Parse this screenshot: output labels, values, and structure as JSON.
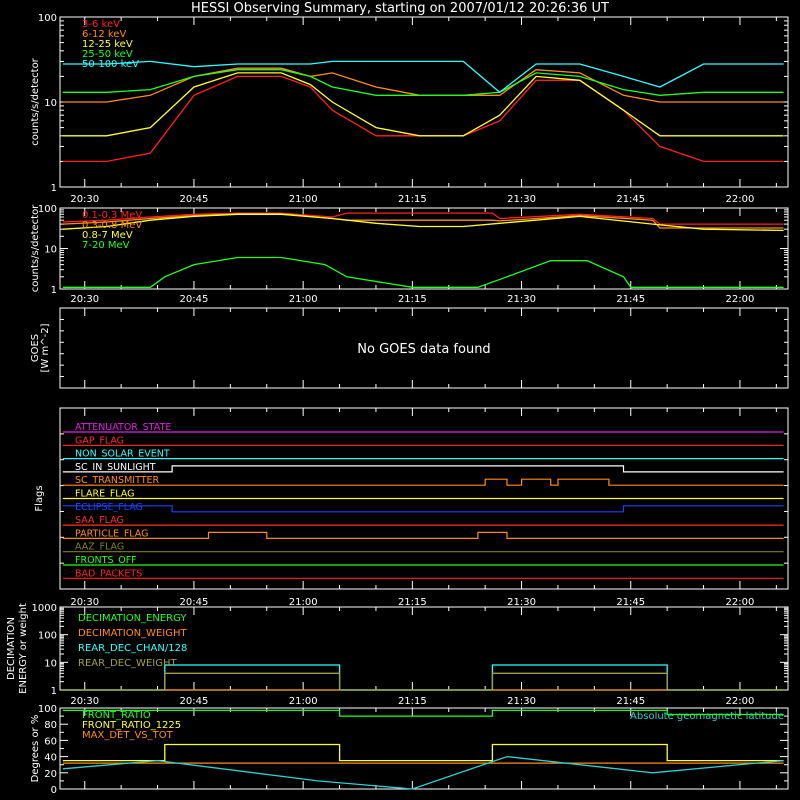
{
  "title": "HESSI Observing Summary, starting on 2007/01/12 20:26:36 UT",
  "chart_data": [
    {
      "type": "line",
      "panel": "low-energy-rates",
      "ylabel": "counts/s/detector",
      "yscale": "log",
      "ylim": [
        1,
        100
      ],
      "ytick_labels": [
        "1",
        "10",
        "100"
      ],
      "xlim": [
        "20:26:36",
        "22:06:36"
      ],
      "xtick_labels": [
        "20:30",
        "20:45",
        "21:00",
        "21:15",
        "21:30",
        "21:45",
        "22:00"
      ],
      "legend_placement": "top-left",
      "series": [
        {
          "name": "3-6 keV",
          "color": "#ff2020",
          "x": [
            "20:27",
            "20:33",
            "20:39",
            "20:45",
            "20:51",
            "20:57",
            "21:01",
            "21:04",
            "21:10",
            "21:16",
            "21:22",
            "21:27",
            "21:32",
            "21:38",
            "21:44",
            "21:49",
            "21:55",
            "22:01",
            "22:06"
          ],
          "values": [
            2,
            2,
            2.5,
            12,
            20,
            20,
            15,
            8,
            4,
            4,
            4,
            6,
            18,
            18,
            8,
            3,
            2,
            2,
            2
          ]
        },
        {
          "name": "6-12 keV",
          "color": "#ff8c1a",
          "x": [
            "20:27",
            "20:33",
            "20:39",
            "20:45",
            "20:51",
            "20:57",
            "21:01",
            "21:04",
            "21:10",
            "21:16",
            "21:22",
            "21:27",
            "21:32",
            "21:38",
            "21:44",
            "21:49",
            "21:55",
            "22:01",
            "22:06"
          ],
          "values": [
            10,
            10,
            12,
            20,
            25,
            25,
            20,
            22,
            15,
            12,
            12,
            12,
            24,
            22,
            12,
            10,
            10,
            10,
            10
          ]
        },
        {
          "name": "12-25 keV",
          "color": "#ffff30",
          "x": [
            "20:27",
            "20:33",
            "20:39",
            "20:45",
            "20:51",
            "20:57",
            "21:01",
            "21:04",
            "21:10",
            "21:16",
            "21:22",
            "21:27",
            "21:32",
            "21:38",
            "21:44",
            "21:49",
            "21:55",
            "22:01",
            "22:06"
          ],
          "values": [
            4,
            4,
            5,
            15,
            22,
            22,
            16,
            10,
            5,
            4,
            4,
            7,
            20,
            18,
            8,
            4,
            4,
            4,
            4
          ]
        },
        {
          "name": "25-50 keV",
          "color": "#20ff20",
          "x": [
            "20:27",
            "20:33",
            "20:39",
            "20:45",
            "20:51",
            "20:57",
            "21:01",
            "21:04",
            "21:10",
            "21:16",
            "21:22",
            "21:27",
            "21:32",
            "21:38",
            "21:44",
            "21:49",
            "21:55",
            "22:01",
            "22:06"
          ],
          "values": [
            13,
            13,
            14,
            20,
            24,
            24,
            20,
            15,
            12,
            12,
            12,
            13,
            22,
            20,
            14,
            12,
            13,
            13,
            13
          ]
        },
        {
          "name": "50-100 keV",
          "color": "#30ffff",
          "x": [
            "20:27",
            "20:33",
            "20:39",
            "20:45",
            "20:51",
            "20:57",
            "21:01",
            "21:04",
            "21:10",
            "21:16",
            "21:22",
            "21:27",
            "21:32",
            "21:38",
            "21:44",
            "21:49",
            "21:55",
            "22:01",
            "22:06"
          ],
          "values": [
            28,
            28,
            30,
            26,
            28,
            28,
            28,
            30,
            30,
            30,
            30,
            13,
            28,
            28,
            20,
            15,
            28,
            28,
            28
          ]
        }
      ]
    },
    {
      "type": "line",
      "panel": "high-energy-rates",
      "ylabel": "counts/s/detector",
      "yscale": "log",
      "ylim": [
        1,
        100
      ],
      "ytick_labels": [
        "1",
        "10",
        "100"
      ],
      "xlim": [
        "20:26:36",
        "22:06:36"
      ],
      "xtick_labels": [
        "20:30",
        "20:45",
        "21:00",
        "21:15",
        "21:30",
        "21:45",
        "22:00"
      ],
      "legend_placement": "top-left",
      "series": [
        {
          "name": "0.1-0.3 MeV",
          "color": "#ff2020",
          "x": [
            "20:27",
            "20:33",
            "20:39",
            "20:45",
            "20:51",
            "20:57",
            "21:04",
            "21:06",
            "21:15",
            "21:26",
            "21:27",
            "21:38",
            "21:48",
            "21:49",
            "21:55",
            "22:06"
          ],
          "values": [
            45,
            50,
            60,
            70,
            75,
            75,
            60,
            75,
            75,
            75,
            55,
            70,
            55,
            40,
            40,
            40
          ]
        },
        {
          "name": "0.3-0.8 MeV",
          "color": "#ff8c1a",
          "x": [
            "20:27",
            "20:33",
            "20:39",
            "20:45",
            "20:51",
            "20:57",
            "21:04",
            "21:06",
            "21:15",
            "21:26",
            "21:27",
            "21:38",
            "21:48",
            "21:49",
            "21:55",
            "22:06"
          ],
          "values": [
            40,
            45,
            55,
            65,
            72,
            72,
            55,
            50,
            50,
            50,
            48,
            65,
            50,
            32,
            32,
            32
          ]
        },
        {
          "name": "0.8-7 MeV",
          "color": "#ffff30",
          "x": [
            "20:27",
            "20:33",
            "20:39",
            "20:45",
            "20:51",
            "20:57",
            "21:04",
            "21:10",
            "21:16",
            "21:22",
            "21:27",
            "21:38",
            "21:48",
            "21:55",
            "22:06"
          ],
          "values": [
            30,
            35,
            50,
            62,
            70,
            70,
            55,
            42,
            35,
            35,
            42,
            62,
            40,
            30,
            28
          ]
        },
        {
          "name": "7-20 MeV",
          "color": "#20ff20",
          "x": [
            "20:27",
            "20:39",
            "20:41",
            "20:45",
            "20:51",
            "20:57",
            "21:03",
            "21:06",
            "21:15",
            "21:24",
            "21:28",
            "21:34",
            "21:39",
            "21:44",
            "21:45",
            "22:06"
          ],
          "values": [
            1.1,
            1.1,
            2,
            4,
            6,
            6,
            4,
            2,
            1.1,
            1.1,
            2,
            5,
            5,
            2,
            1.1,
            1.1
          ]
        }
      ]
    },
    {
      "type": "line",
      "panel": "goes",
      "ylabel": "GOES [W m^-2]",
      "annotations": [
        "No GOES data found"
      ],
      "xlim": [
        "20:26:36",
        "22:06:36"
      ],
      "series": []
    },
    {
      "type": "line",
      "panel": "flags",
      "ylabel": "Flags",
      "xlim": [
        "20:26:36",
        "22:06:36"
      ],
      "xtick_labels": [
        "20:30",
        "20:45",
        "21:00",
        "21:15",
        "21:30",
        "21:45",
        "22:00"
      ],
      "series": [
        {
          "name": "ATTENUATOR_STATE",
          "color": "#e020e0",
          "x": [
            "20:27",
            "22:06"
          ],
          "values": [
            0,
            0
          ]
        },
        {
          "name": "GAP_FLAG",
          "color": "#ff3030",
          "x": [
            "20:27",
            "22:06"
          ],
          "values": [
            0,
            0
          ]
        },
        {
          "name": "NON_SOLAR_EVENT",
          "color": "#30ffff",
          "x": [
            "20:27",
            "22:06"
          ],
          "values": [
            0,
            0
          ]
        },
        {
          "name": "SC_IN_SUNLIGHT",
          "color": "#ffffff",
          "x": [
            "20:27",
            "20:42",
            "20:42",
            "21:44",
            "21:44",
            "22:06"
          ],
          "values": [
            0,
            0,
            1,
            1,
            0,
            0
          ]
        },
        {
          "name": "SC_TRANSMITTER",
          "color": "#ff8c1a",
          "x": [
            "20:27",
            "21:25",
            "21:25",
            "21:28",
            "21:28",
            "21:30",
            "21:30",
            "21:34",
            "21:34",
            "21:35",
            "21:35",
            "21:42",
            "21:42",
            "22:06"
          ],
          "values": [
            0,
            0,
            1,
            1,
            0,
            0,
            1,
            1,
            0,
            0,
            1,
            1,
            0,
            0
          ]
        },
        {
          "name": "FLARE_FLAG",
          "color": "#ffff30",
          "x": [
            "20:27",
            "22:06"
          ],
          "values": [
            0,
            0
          ]
        },
        {
          "name": "ECLIPSE_FLAG",
          "color": "#2040ff",
          "x": [
            "20:27",
            "20:42",
            "20:42",
            "21:44",
            "21:44",
            "22:06"
          ],
          "values": [
            1,
            1,
            0,
            0,
            1,
            1
          ]
        },
        {
          "name": "SAA_FLAG",
          "color": "#ff3030",
          "x": [
            "20:27",
            "22:06"
          ],
          "values": [
            0,
            0
          ]
        },
        {
          "name": "PARTICLE_FLAG",
          "color": "#ff8c1a",
          "x": [
            "20:27",
            "20:47",
            "20:47",
            "20:55",
            "20:55",
            "21:24",
            "21:24",
            "21:28",
            "21:28",
            "22:06"
          ],
          "values": [
            0,
            0,
            1,
            1,
            0,
            0,
            1,
            1,
            0,
            0
          ]
        },
        {
          "name": "AAZ_FLAG",
          "color": "#808020",
          "x": [
            "20:27",
            "22:06"
          ],
          "values": [
            0,
            0
          ]
        },
        {
          "name": "FRONTS_OFF",
          "color": "#20ff20",
          "x": [
            "20:27",
            "22:06"
          ],
          "values": [
            0,
            0
          ]
        },
        {
          "name": "BAD_PACKETS",
          "color": "#ff2020",
          "x": [
            "20:27",
            "22:06"
          ],
          "values": [
            0,
            0
          ]
        }
      ]
    },
    {
      "type": "line",
      "panel": "decimation",
      "ylabel": "DECIMATION ENERGY or weight",
      "yscale": "log",
      "ylim": [
        1,
        1000
      ],
      "ytick_labels": [
        "1",
        "10",
        "100",
        "1000"
      ],
      "xlim": [
        "20:26:36",
        "22:06:36"
      ],
      "xtick_labels": [
        "20:30",
        "20:45",
        "21:00",
        "21:15",
        "21:30",
        "21:45",
        "22:00"
      ],
      "legend_placement": "top-left",
      "series": [
        {
          "name": "DECIMATION_ENERGY",
          "color": "#20ff20",
          "x": [
            "20:27",
            "22:06"
          ],
          "values": [
            1,
            1
          ]
        },
        {
          "name": "DECIMATION_WEIGHT",
          "color": "#ff8c1a",
          "x": [
            "20:27",
            "22:06"
          ],
          "values": [
            1,
            1
          ]
        },
        {
          "name": "REAR_DEC_CHAN/128",
          "color": "#30ffff",
          "x": [
            "20:27",
            "20:41",
            "20:41",
            "21:05",
            "21:05",
            "21:26",
            "21:26",
            "21:50",
            "21:50",
            "22:06"
          ],
          "values": [
            1,
            1,
            8,
            8,
            1,
            1,
            8,
            8,
            1,
            1
          ]
        },
        {
          "name": "REAR_DEC_WEIGHT",
          "color": "#a0a040",
          "x": [
            "20:27",
            "20:41",
            "20:41",
            "21:05",
            "21:05",
            "21:26",
            "21:26",
            "21:50",
            "21:50",
            "22:06"
          ],
          "values": [
            1,
            1,
            4,
            4,
            1,
            1,
            4,
            4,
            1,
            1
          ]
        }
      ]
    },
    {
      "type": "line",
      "panel": "ratios",
      "ylabel": "Degrees or %",
      "ylim": [
        0,
        100
      ],
      "ytick_labels": [
        "0",
        "20",
        "40",
        "60",
        "80",
        "100"
      ],
      "xlim": [
        "20:26:36",
        "22:06:36"
      ],
      "legend_placement": "top-left",
      "annotations": [
        "Absolute geomagnetic latitude"
      ],
      "series": [
        {
          "name": "FRONT_RATIO",
          "color": "#20ff20",
          "x": [
            "20:27",
            "20:41",
            "20:41",
            "21:05",
            "21:05",
            "21:26",
            "21:26",
            "21:50",
            "21:50",
            "22:06"
          ],
          "values": [
            97,
            97,
            97,
            97,
            90,
            90,
            97,
            97,
            92,
            92
          ]
        },
        {
          "name": "FRONT_RATIO_1225",
          "color": "#ffff30",
          "x": [
            "20:27",
            "20:41",
            "20:41",
            "21:05",
            "21:05",
            "21:26",
            "21:26",
            "21:50",
            "21:50",
            "22:06"
          ],
          "values": [
            35,
            35,
            55,
            55,
            35,
            35,
            55,
            55,
            35,
            35
          ]
        },
        {
          "name": "MAX_DET_VS_TOT",
          "color": "#ff8c1a",
          "x": [
            "20:27",
            "22:06"
          ],
          "values": [
            32,
            32
          ]
        },
        {
          "name": "Absolute geomagnetic latitude",
          "color": "#30d0d0",
          "x": [
            "20:27",
            "20:40",
            "21:02",
            "21:15",
            "21:28",
            "21:48",
            "22:06"
          ],
          "values": [
            25,
            35,
            10,
            0,
            40,
            20,
            35
          ]
        }
      ]
    }
  ]
}
